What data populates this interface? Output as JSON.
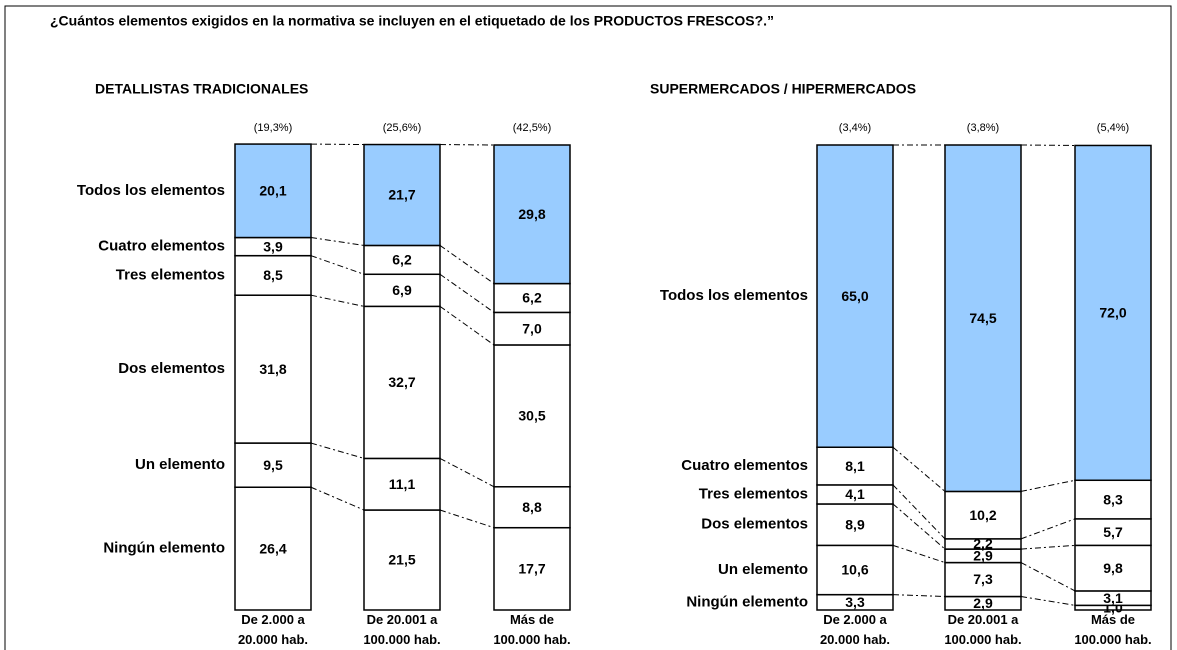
{
  "title": "¿Cuántos elementos exigidos en la normativa se incluyen en el etiquetado de los PRODUCTOS FRESCOS?.”",
  "chart_data": [
    {
      "type": "bar",
      "stacked": true,
      "subtitle": "DETALLISTAS TRADICIONALES",
      "categories": [
        "De 2.000 a 20.000 hab.",
        "De 20.001 a 100.000 hab.",
        "Más de 100.000 hab."
      ],
      "bar_notes": [
        "(19,3%)",
        "(25,6%)",
        "(42,5%)"
      ],
      "ylim": [
        0,
        100
      ],
      "series": [
        {
          "name": "Ningún elemento",
          "color": "#ffffff",
          "values": [
            26.4,
            21.5,
            17.7
          ],
          "value_labels": [
            "26,4",
            "21,5",
            "17,7"
          ]
        },
        {
          "name": "Un elemento",
          "color": "#ffffff",
          "values": [
            9.5,
            11.1,
            8.8
          ],
          "value_labels": [
            "9,5",
            "11,1",
            "8,8"
          ]
        },
        {
          "name": "Dos elementos",
          "color": "#ffffff",
          "values": [
            31.8,
            32.7,
            30.5
          ],
          "value_labels": [
            "31,8",
            "32,7",
            "30,5"
          ]
        },
        {
          "name": "Tres elementos",
          "color": "#ffffff",
          "values": [
            8.5,
            6.9,
            7.0
          ],
          "value_labels": [
            "8,5",
            "6,9",
            "7,0"
          ]
        },
        {
          "name": "Cuatro elementos",
          "color": "#ffffff",
          "values": [
            3.9,
            6.2,
            6.2
          ],
          "value_labels": [
            "3,9",
            "6,2",
            "6,2"
          ]
        },
        {
          "name": "Todos los elementos",
          "color": "#99ccff",
          "values": [
            20.1,
            21.7,
            29.8
          ],
          "value_labels": [
            "20,1",
            "21,7",
            "29,8"
          ]
        }
      ]
    },
    {
      "type": "bar",
      "stacked": true,
      "subtitle": "SUPERMERCADOS / HIPERMERCADOS",
      "categories": [
        "De 2.000 a 20.000 hab.",
        "De 20.001 a 100.000 hab.",
        "Más de 100.000 hab."
      ],
      "bar_notes": [
        "(3,4%)",
        "(3,8%)",
        "(5,4%)"
      ],
      "ylim": [
        0,
        100
      ],
      "series": [
        {
          "name": "Ningún elemento",
          "color": "#ffffff",
          "values": [
            3.3,
            2.9,
            1.0
          ],
          "value_labels": [
            "3,3",
            "2,9",
            "1,0"
          ]
        },
        {
          "name": "Un elemento",
          "color": "#ffffff",
          "values": [
            10.6,
            7.3,
            3.1
          ],
          "value_labels": [
            "10,6",
            "7,3",
            "3,1"
          ]
        },
        {
          "name": "Dos elementos",
          "color": "#ffffff",
          "values": [
            8.9,
            2.9,
            9.8
          ],
          "value_labels": [
            "8,9",
            "2,9",
            "9,8"
          ]
        },
        {
          "name": "Tres elementos",
          "color": "#ffffff",
          "values": [
            4.1,
            2.2,
            5.7
          ],
          "value_labels": [
            "4,1",
            "2,2",
            "5,7"
          ]
        },
        {
          "name": "Cuatro elementos",
          "color": "#ffffff",
          "values": [
            8.1,
            10.2,
            8.3
          ],
          "value_labels": [
            "8,1",
            "10,2",
            "8,3"
          ]
        },
        {
          "name": "Todos los elementos",
          "color": "#99ccff",
          "values": [
            65.0,
            74.5,
            72.0
          ],
          "value_labels": [
            "65,0",
            "74,5",
            "72,0"
          ]
        }
      ]
    }
  ]
}
